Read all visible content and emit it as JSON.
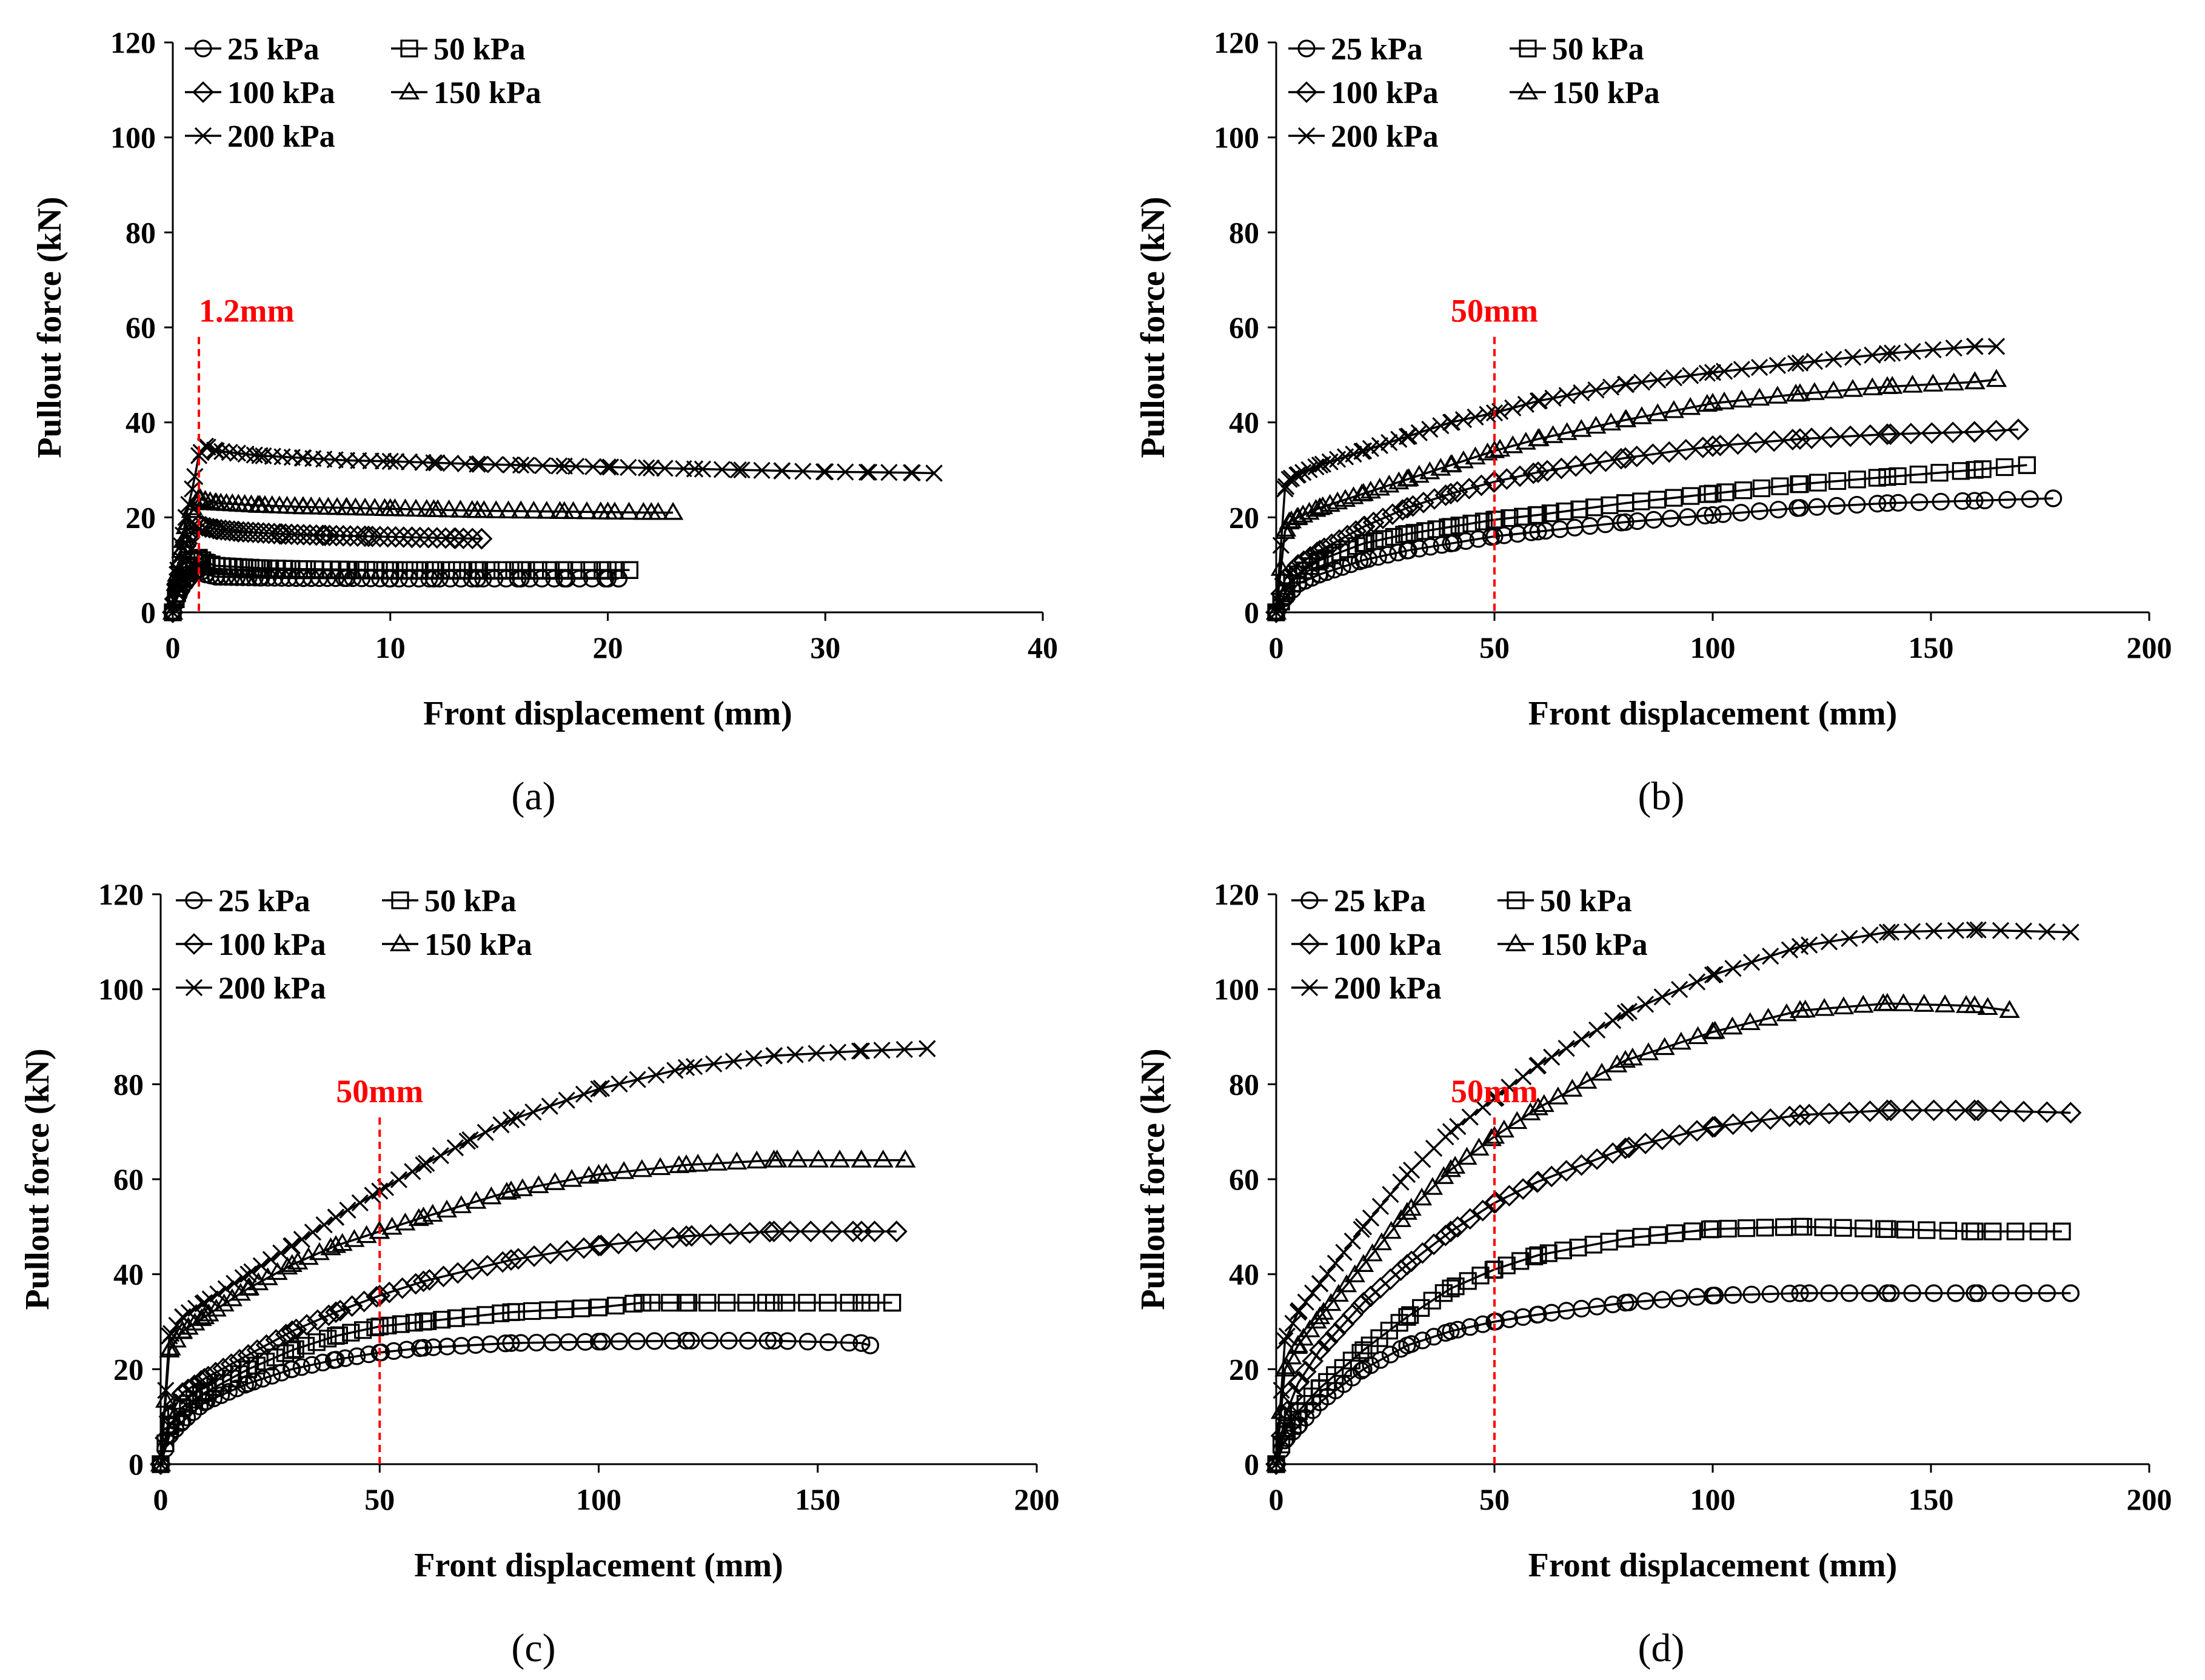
{
  "figure": {
    "panel_labels": [
      "(a)",
      "(b)",
      "(c)",
      "(d)"
    ]
  },
  "chart_data": [
    {
      "type": "line",
      "panel": "(a)",
      "title": "",
      "xlabel": "Front displacement (mm)",
      "ylabel": "Pullout force (kN)",
      "xlim": [
        0,
        40
      ],
      "ylim": [
        0,
        120
      ],
      "xticks": [
        0,
        10,
        20,
        30,
        40
      ],
      "yticks": [
        0,
        20,
        40,
        60,
        80,
        100,
        120
      ],
      "legend": [
        "25 kPa",
        "50 kPa",
        "100 kPa",
        "150 kPa",
        "200 kPa"
      ],
      "marker_line": {
        "x": 1.2,
        "label": "1.2mm",
        "color": "#ff0000"
      },
      "series": [
        {
          "name": "25 kPa",
          "marker": "circle",
          "x": [
            0,
            0.2,
            0.4,
            0.7,
            1.0,
            1.2,
            1.5,
            2,
            4,
            6,
            8,
            10,
            12,
            14,
            16,
            18,
            20,
            20.5
          ],
          "y": [
            0,
            3,
            5,
            7,
            8.5,
            9,
            8,
            7.5,
            7.3,
            7.2,
            7.2,
            7.1,
            7.1,
            7.1,
            7.1,
            7.1,
            7.1,
            7.1
          ]
        },
        {
          "name": "50 kPa",
          "marker": "square",
          "x": [
            0,
            0.2,
            0.4,
            0.7,
            1.0,
            1.2,
            1.5,
            2,
            4,
            6,
            8,
            10,
            12,
            14,
            16,
            18,
            20,
            21
          ],
          "y": [
            0,
            4,
            7,
            9.5,
            11,
            11.5,
            10.5,
            9.8,
            9.3,
            9.1,
            9.0,
            8.9,
            8.9,
            8.9,
            8.9,
            8.9,
            8.9,
            8.9
          ]
        },
        {
          "name": "100 kPa",
          "marker": "diamond",
          "x": [
            0,
            0.2,
            0.4,
            0.6,
            0.9,
            1.2,
            1.5,
            2,
            3,
            5,
            7,
            9,
            11,
            13,
            14.2
          ],
          "y": [
            0,
            6,
            10,
            14,
            17,
            18.5,
            18,
            17.5,
            17,
            16.5,
            16.2,
            16,
            15.8,
            15.6,
            15.5
          ]
        },
        {
          "name": "150 kPa",
          "marker": "triangle",
          "x": [
            0,
            0.2,
            0.4,
            0.6,
            0.9,
            1.2,
            1.5,
            2,
            4,
            6,
            8,
            10,
            12,
            14,
            16,
            18,
            20,
            22,
            23
          ],
          "y": [
            0,
            8,
            13,
            18,
            22,
            24,
            23.5,
            23,
            22.5,
            22.2,
            22,
            21.8,
            21.6,
            21.4,
            21.3,
            21.2,
            21.1,
            21,
            21
          ]
        },
        {
          "name": "200 kPa",
          "marker": "x",
          "x": [
            0,
            0.2,
            0.4,
            0.6,
            0.9,
            1.2,
            1.5,
            2,
            4,
            6,
            8,
            10,
            12,
            14,
            16,
            18,
            20,
            22,
            24,
            26,
            28,
            30,
            32,
            34,
            35
          ],
          "y": [
            0,
            8,
            14,
            20,
            26,
            33,
            35,
            34,
            33,
            32.5,
            32,
            31.8,
            31.5,
            31.2,
            31,
            30.8,
            30.6,
            30.4,
            30.2,
            30,
            29.8,
            29.6,
            29.5,
            29.4,
            29.3
          ]
        }
      ]
    },
    {
      "type": "line",
      "panel": "(b)",
      "title": "",
      "xlabel": "Front displacement (mm)",
      "ylabel": "Pullout force (kN)",
      "xlim": [
        0,
        200
      ],
      "ylim": [
        0,
        120
      ],
      "xticks": [
        0,
        50,
        100,
        150,
        200
      ],
      "yticks": [
        0,
        20,
        40,
        60,
        80,
        100,
        120
      ],
      "legend": [
        "25 kPa",
        "50 kPa",
        "100 kPa",
        "150 kPa",
        "200 kPa"
      ],
      "marker_line": {
        "x": 50,
        "label": "50mm",
        "color": "#ff0000"
      },
      "series": [
        {
          "name": "25 kPa",
          "marker": "circle",
          "x": [
            0,
            2,
            5,
            10,
            20,
            30,
            40,
            50,
            60,
            80,
            100,
            120,
            140,
            160,
            178
          ],
          "y": [
            0,
            3,
            6,
            8,
            11,
            13,
            14.5,
            16,
            17,
            19,
            20.5,
            22,
            23,
            23.5,
            24
          ]
        },
        {
          "name": "50 kPa",
          "marker": "square",
          "x": [
            0,
            2,
            5,
            10,
            20,
            30,
            40,
            50,
            60,
            80,
            100,
            120,
            140,
            160,
            172
          ],
          "y": [
            0,
            4,
            8,
            11,
            14.5,
            16.5,
            18,
            19.5,
            20.5,
            23,
            25,
            27,
            28.5,
            30,
            31
          ]
        },
        {
          "name": "100 kPa",
          "marker": "diamond",
          "x": [
            0,
            2,
            5,
            10,
            20,
            30,
            40,
            50,
            60,
            80,
            100,
            120,
            140,
            160,
            170
          ],
          "y": [
            0,
            7,
            10,
            13,
            18,
            22,
            25,
            27.5,
            29.5,
            32.5,
            35,
            36.5,
            37.5,
            38,
            38.5
          ]
        },
        {
          "name": "150 kPa",
          "marker": "triangle",
          "x": [
            0,
            2,
            3,
            5,
            10,
            20,
            30,
            40,
            50,
            60,
            80,
            100,
            120,
            140,
            160,
            165
          ],
          "y": [
            0,
            17,
            19,
            20,
            22,
            25,
            28,
            31,
            34,
            36.5,
            40.5,
            44,
            46,
            47.5,
            48.5,
            49
          ]
        },
        {
          "name": "200 kPa",
          "marker": "x",
          "x": [
            0,
            2,
            3,
            5,
            10,
            20,
            30,
            40,
            50,
            60,
            80,
            100,
            120,
            140,
            160,
            165
          ],
          "y": [
            0,
            26,
            28,
            29,
            31,
            34,
            37,
            40,
            42,
            44.5,
            48,
            50.5,
            52.5,
            54.5,
            56,
            56
          ]
        }
      ]
    },
    {
      "type": "line",
      "panel": "(c)",
      "title": "",
      "xlabel": "Front displacement (mm)",
      "ylabel": "Pullout force (kN)",
      "xlim": [
        0,
        200
      ],
      "ylim": [
        0,
        120
      ],
      "xticks": [
        0,
        50,
        100,
        150,
        200
      ],
      "yticks": [
        0,
        20,
        40,
        60,
        80,
        100,
        120
      ],
      "legend": [
        "25 kPa",
        "50 kPa",
        "100 kPa",
        "150 kPa",
        "200 kPa"
      ],
      "marker_line": {
        "x": 50,
        "label": "50mm",
        "color": "#ff0000"
      },
      "series": [
        {
          "name": "25 kPa",
          "marker": "circle",
          "x": [
            0,
            2,
            5,
            10,
            20,
            30,
            40,
            50,
            60,
            80,
            100,
            120,
            140,
            160,
            162
          ],
          "y": [
            0,
            6,
            9,
            13,
            17,
            20,
            22,
            23.5,
            24.5,
            25.5,
            25.8,
            26,
            26,
            25.5,
            25
          ]
        },
        {
          "name": "50 kPa",
          "marker": "square",
          "x": [
            0,
            2,
            5,
            10,
            20,
            30,
            40,
            50,
            60,
            80,
            100,
            110,
            120,
            140,
            160,
            167
          ],
          "y": [
            0,
            8,
            12,
            15,
            20,
            24,
            27,
            29,
            30,
            32,
            33,
            34,
            34,
            34,
            34,
            34
          ]
        },
        {
          "name": "100 kPa",
          "marker": "diamond",
          "x": [
            0,
            2,
            5,
            10,
            20,
            30,
            40,
            50,
            60,
            80,
            100,
            120,
            140,
            160,
            168
          ],
          "y": [
            0,
            10,
            15,
            18,
            23,
            28,
            32,
            35.5,
            38.5,
            43,
            46,
            48,
            49,
            49,
            49
          ]
        },
        {
          "name": "150 kPa",
          "marker": "triangle",
          "x": [
            0,
            2,
            5,
            10,
            20,
            30,
            40,
            50,
            60,
            80,
            100,
            120,
            140,
            160,
            170
          ],
          "y": [
            0,
            24,
            28,
            31,
            37,
            42,
            46,
            49,
            52,
            57.5,
            61,
            63,
            64,
            64,
            64
          ]
        },
        {
          "name": "200 kPa",
          "marker": "x",
          "x": [
            0,
            2,
            5,
            10,
            20,
            30,
            40,
            50,
            60,
            70,
            80,
            100,
            120,
            140,
            160,
            175
          ],
          "y": [
            0,
            27,
            31,
            34,
            40,
            46,
            52,
            57.5,
            63,
            68,
            72.5,
            79,
            83.5,
            86,
            87,
            87.5
          ]
        }
      ]
    },
    {
      "type": "line",
      "panel": "(d)",
      "title": "",
      "xlabel": "Front displacement (mm)",
      "ylabel": "Pullout force (kN)",
      "xlim": [
        0,
        200
      ],
      "ylim": [
        0,
        120
      ],
      "xticks": [
        0,
        50,
        100,
        150,
        200
      ],
      "yticks": [
        0,
        20,
        40,
        60,
        80,
        100,
        120
      ],
      "legend": [
        "25 kPa",
        "50 kPa",
        "100 kPa",
        "150 kPa",
        "200 kPa"
      ],
      "marker_line": {
        "x": 50,
        "label": "50mm",
        "color": "#ff0000"
      },
      "series": [
        {
          "name": "25 kPa",
          "marker": "circle",
          "x": [
            0,
            2,
            5,
            10,
            20,
            30,
            40,
            50,
            60,
            80,
            100,
            120,
            140,
            160,
            182
          ],
          "y": [
            0,
            5,
            8,
            13,
            20,
            25,
            28,
            30,
            31.5,
            34,
            35.5,
            36,
            36,
            36,
            36
          ]
        },
        {
          "name": "50 kPa",
          "marker": "square",
          "x": [
            0,
            2,
            5,
            10,
            20,
            30,
            40,
            50,
            60,
            80,
            100,
            120,
            140,
            160,
            180
          ],
          "y": [
            0,
            7,
            11,
            16,
            24,
            31,
            37,
            41,
            44,
            47.5,
            49.5,
            50,
            49.5,
            49,
            49
          ]
        },
        {
          "name": "100 kPa",
          "marker": "diamond",
          "x": [
            0,
            2,
            5,
            10,
            20,
            30,
            40,
            50,
            60,
            80,
            100,
            120,
            140,
            160,
            182
          ],
          "y": [
            0,
            10,
            17,
            24,
            34,
            42,
            49,
            55,
            59.5,
            66.5,
            71,
            73.5,
            74.5,
            74.5,
            74
          ]
        },
        {
          "name": "150 kPa",
          "marker": "triangle",
          "x": [
            0,
            2,
            5,
            10,
            20,
            30,
            40,
            50,
            60,
            80,
            100,
            120,
            140,
            160,
            168
          ],
          "y": [
            0,
            20,
            25,
            31,
            42,
            53,
            62,
            69,
            75,
            85,
            91,
            95.5,
            97,
            96.5,
            95.5
          ]
        },
        {
          "name": "200 kPa",
          "marker": "x",
          "x": [
            0,
            2,
            5,
            10,
            20,
            30,
            40,
            50,
            60,
            80,
            100,
            120,
            140,
            160,
            182
          ],
          "y": [
            0,
            26,
            32,
            38,
            50,
            61,
            70,
            77,
            84,
            95,
            103,
            109,
            112,
            112.5,
            112
          ]
        }
      ]
    }
  ]
}
